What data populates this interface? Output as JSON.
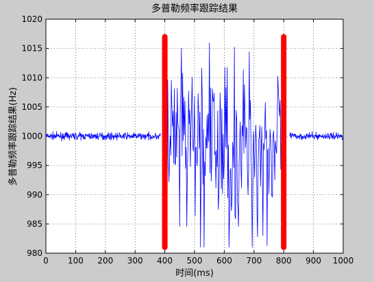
{
  "chart_data": {
    "type": "line",
    "title": "多普勒频率跟踪结果",
    "xlabel": "时间(ms)",
    "ylabel": "多普勒频率跟踪结果(Hz)",
    "xlim": [
      0,
      1000
    ],
    "ylim": [
      980,
      1020
    ],
    "x_ticks": [
      0,
      100,
      200,
      300,
      400,
      500,
      600,
      700,
      800,
      900,
      1000
    ],
    "y_ticks": [
      980,
      985,
      990,
      995,
      1000,
      1005,
      1010,
      1015,
      1020
    ],
    "grid": "dotted",
    "series": [
      {
        "color": "#0000ff",
        "segments": [
          {
            "x_range": [
              0,
              385
            ],
            "baseline": 1000,
            "amplitude": 0.3
          },
          {
            "x_range": [
              400,
              800
            ],
            "baseline": 998,
            "amplitude": 8,
            "min": 981,
            "max": 1016
          },
          {
            "x_range": [
              820,
              1000
            ],
            "baseline": 1000,
            "amplitude": 0.3
          }
        ]
      }
    ],
    "markers": [
      {
        "color": "#ff0000",
        "x": 400,
        "y_range": [
          981,
          1017
        ]
      },
      {
        "color": "#ff0000",
        "x": 800,
        "y_range": [
          981,
          1017
        ]
      }
    ]
  }
}
